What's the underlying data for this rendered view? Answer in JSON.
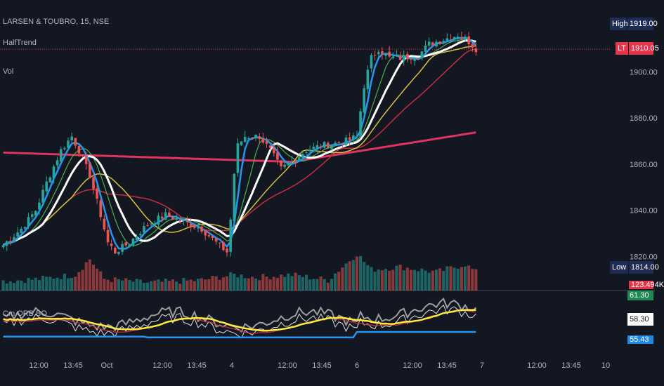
{
  "legend": {
    "symbol": "LARSEN & TOUBRO, 15, NSE",
    "indicator1": "HalfTrend",
    "indicator2": "Vol",
    "oscillator": "Cm ORB BO"
  },
  "price_badges": {
    "high_label": "High",
    "high_value": "1919.00",
    "last_label": "LT",
    "last_value": "1910.05",
    "low_label": "Low",
    "low_value": "1814.00",
    "volume_value": "123.494K"
  },
  "osc_badges": {
    "top_value": "61.30",
    "mid_value": "58.30",
    "low_value": "55.43"
  },
  "colors": {
    "background": "#131722",
    "up": "#26a69a",
    "down": "#ef5350",
    "halftrend": "#2196f3",
    "white_ma": "#ffffff",
    "yellow_ma": "#d4c23a",
    "red_ma": "#c62d3f",
    "green_ma": "#4caf50",
    "long_ma": "#e0335d",
    "badge_navy": "#1e2b55",
    "badge_red": "#e5354b",
    "badge_green": "#1c8a55",
    "badge_blue": "#1e88e5"
  },
  "chart_data": {
    "type": "candlestick",
    "title": "LARSEN & TOUBRO, 15, NSE",
    "y_ticks": [
      1820,
      1840,
      1860,
      1880,
      1900
    ],
    "y_tick_labels": [
      "1820.00",
      "1840.00",
      "1860.00",
      "1880.00",
      "1900.00"
    ],
    "ylim": [
      1808,
      1925
    ],
    "x_tick_labels": [
      "12:00",
      "13:45",
      "Oct",
      "12:00",
      "13:45",
      "4",
      "12:00",
      "13:45",
      "6",
      "12:00",
      "13:45",
      "7",
      "12:00",
      "13:45",
      "10"
    ],
    "grid": false,
    "current_price": 1910.05,
    "high": 1919.0,
    "low": 1814.0,
    "price_anchors": [
      [
        0,
        1825
      ],
      [
        5,
        1832
      ],
      [
        9,
        1840
      ],
      [
        12,
        1852
      ],
      [
        16,
        1866
      ],
      [
        19,
        1872
      ],
      [
        21,
        1866
      ],
      [
        24,
        1855
      ],
      [
        27,
        1838
      ],
      [
        29,
        1826
      ],
      [
        31,
        1822
      ],
      [
        35,
        1826
      ],
      [
        40,
        1834
      ],
      [
        45,
        1838
      ],
      [
        50,
        1835
      ],
      [
        55,
        1832
      ],
      [
        59,
        1826
      ],
      [
        62,
        1822
      ],
      [
        63,
        1836
      ],
      [
        64,
        1856
      ],
      [
        65,
        1868
      ],
      [
        67,
        1872
      ],
      [
        71,
        1872
      ],
      [
        74,
        1866
      ],
      [
        77,
        1858
      ],
      [
        80,
        1861
      ],
      [
        84,
        1866
      ],
      [
        88,
        1868
      ],
      [
        92,
        1869
      ],
      [
        95,
        1870
      ],
      [
        98,
        1872
      ],
      [
        100,
        1894
      ],
      [
        102,
        1906
      ],
      [
        104,
        1910
      ],
      [
        107,
        1906
      ],
      [
        110,
        1906
      ],
      [
        115,
        1907
      ],
      [
        118,
        1912
      ],
      [
        122,
        1914
      ],
      [
        126,
        1916
      ],
      [
        129,
        1913
      ],
      [
        131,
        1910
      ]
    ],
    "volume_anchors": [
      [
        0,
        0.18
      ],
      [
        10,
        0.22
      ],
      [
        20,
        0.3
      ],
      [
        24,
        0.6
      ],
      [
        28,
        0.22
      ],
      [
        40,
        0.15
      ],
      [
        55,
        0.2
      ],
      [
        64,
        0.3
      ],
      [
        70,
        0.25
      ],
      [
        80,
        0.3
      ],
      [
        90,
        0.2
      ],
      [
        98,
        0.7
      ],
      [
        102,
        0.4
      ],
      [
        110,
        0.45
      ],
      [
        120,
        0.35
      ],
      [
        128,
        0.5
      ],
      [
        131,
        0.35
      ]
    ],
    "series": [
      {
        "name": "HalfTrend",
        "color": "#2196f3"
      },
      {
        "name": "Vol",
        "color": "#26a69a"
      }
    ],
    "oscillator": {
      "name": "Cm ORB BO",
      "values_shown": [
        61.3,
        58.3,
        55.43
      ]
    }
  }
}
